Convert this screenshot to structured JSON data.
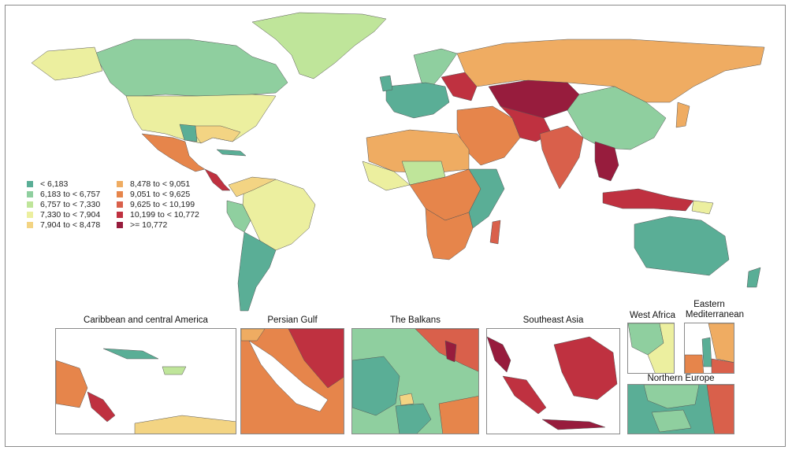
{
  "legend": {
    "items": [
      {
        "label": "< 6,183",
        "color": "#5aae96"
      },
      {
        "label": "6,183 to < 6,757",
        "color": "#8fcf9f"
      },
      {
        "label": "6,757 to < 7,330",
        "color": "#bfe59a"
      },
      {
        "label": "7,330 to < 7,904",
        "color": "#ecef9f"
      },
      {
        "label": "7,904 to < 8,478",
        "color": "#f3d483"
      },
      {
        "label": "8,478 to < 9,051",
        "color": "#efac62"
      },
      {
        "label": "9,051 to < 9,625",
        "color": "#e6854b"
      },
      {
        "label": "9,625 to < 10,199",
        "color": "#d9604b"
      },
      {
        "label": "10,199 to < 10,772",
        "color": "#bf3140"
      },
      {
        "label": ">= 10,772",
        "color": "#971c3d"
      }
    ]
  },
  "insets": {
    "caribbean": "Caribbean and central America",
    "persian_gulf": "Persian Gulf",
    "balkans": "The Balkans",
    "southeast_asia": "Southeast Asia",
    "west_africa": "West Africa",
    "eastern_med_line1": "Eastern",
    "eastern_med_line2": "Mediterranean",
    "northern_europe": "Northern Europe"
  }
}
